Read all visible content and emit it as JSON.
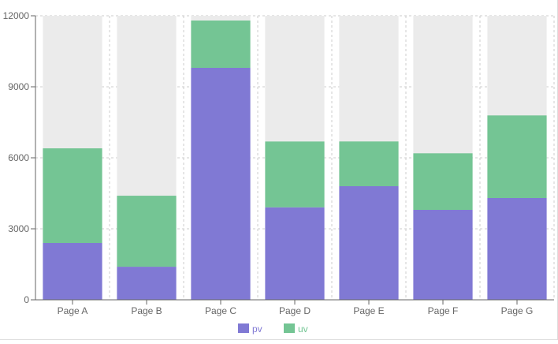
{
  "chart_data": {
    "type": "bar",
    "stacked": true,
    "categories": [
      "Page A",
      "Page B",
      "Page C",
      "Page D",
      "Page E",
      "Page F",
      "Page G"
    ],
    "series": [
      {
        "name": "pv",
        "values": [
          2400,
          1398,
          9800,
          3908,
          4800,
          3800,
          4300
        ],
        "color": "#8079d4"
      },
      {
        "name": "uv",
        "values": [
          4000,
          3000,
          2000,
          2780,
          1890,
          2390,
          3490
        ],
        "color": "#74c594"
      }
    ],
    "background_bar_color": "#ebebeb",
    "ylim": [
      0,
      12000
    ],
    "yticks": [
      0,
      3000,
      6000,
      9000,
      12000
    ],
    "grid": true,
    "legend_position": "bottom-center",
    "title": "",
    "xlabel": "",
    "ylabel": ""
  }
}
